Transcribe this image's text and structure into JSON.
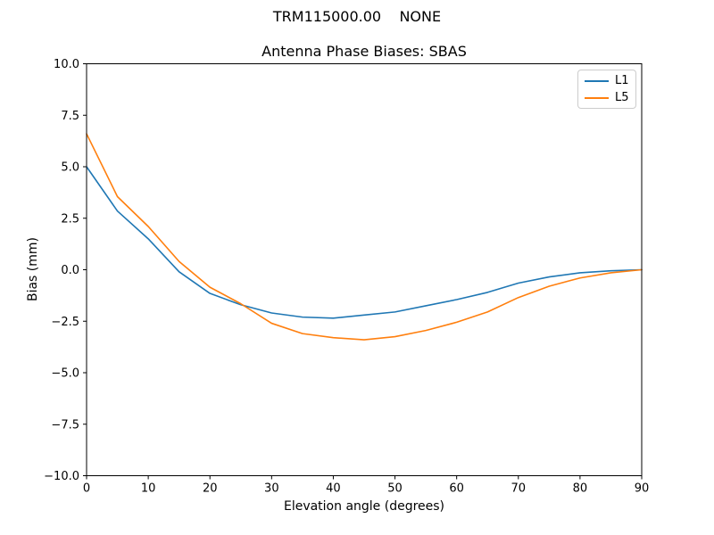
{
  "figure": {
    "suptitle": "TRM115000.00    NONE",
    "axes_title": "Antenna Phase Biases: SBAS"
  },
  "chart_data": {
    "type": "line",
    "suptitle": "TRM115000.00    NONE",
    "title": "Antenna Phase Biases: SBAS",
    "xlabel": "Elevation angle (degrees)",
    "ylabel": "Bias (mm)",
    "xlim": [
      0,
      90
    ],
    "ylim": [
      -10.0,
      10.0
    ],
    "grid": false,
    "legend_position": "upper right",
    "frame_color": "#000000",
    "background_color": "#ffffff",
    "xtick_values": [
      0,
      10,
      20,
      30,
      40,
      50,
      60,
      70,
      80,
      90
    ],
    "xtick_labels": [
      "0",
      "10",
      "20",
      "30",
      "40",
      "50",
      "60",
      "70",
      "80",
      "90"
    ],
    "ytick_values": [
      10.0,
      7.5,
      5.0,
      2.5,
      0.0,
      -2.5,
      -5.0,
      -7.5,
      -10.0
    ],
    "ytick_labels": [
      "10.0",
      "7.5",
      "5.0",
      "2.5",
      "0.0",
      "−2.5",
      "−5.0",
      "−7.5",
      "−10.0"
    ],
    "x": [
      0,
      5,
      10,
      15,
      20,
      25,
      30,
      35,
      40,
      45,
      50,
      55,
      60,
      65,
      70,
      75,
      80,
      85,
      90
    ],
    "series": [
      {
        "name": "L1",
        "color": "#1f77b4",
        "values": [
          5.0,
          2.85,
          1.5,
          -0.1,
          -1.15,
          -1.7,
          -2.1,
          -2.3,
          -2.35,
          -2.2,
          -2.05,
          -1.75,
          -1.45,
          -1.1,
          -0.65,
          -0.35,
          -0.15,
          -0.05,
          0.0
        ]
      },
      {
        "name": "L5",
        "color": "#ff7f0e",
        "values": [
          6.6,
          3.55,
          2.1,
          0.4,
          -0.85,
          -1.65,
          -2.6,
          -3.1,
          -3.3,
          -3.4,
          -3.25,
          -2.95,
          -2.55,
          -2.05,
          -1.35,
          -0.8,
          -0.4,
          -0.15,
          0.0
        ]
      }
    ]
  }
}
